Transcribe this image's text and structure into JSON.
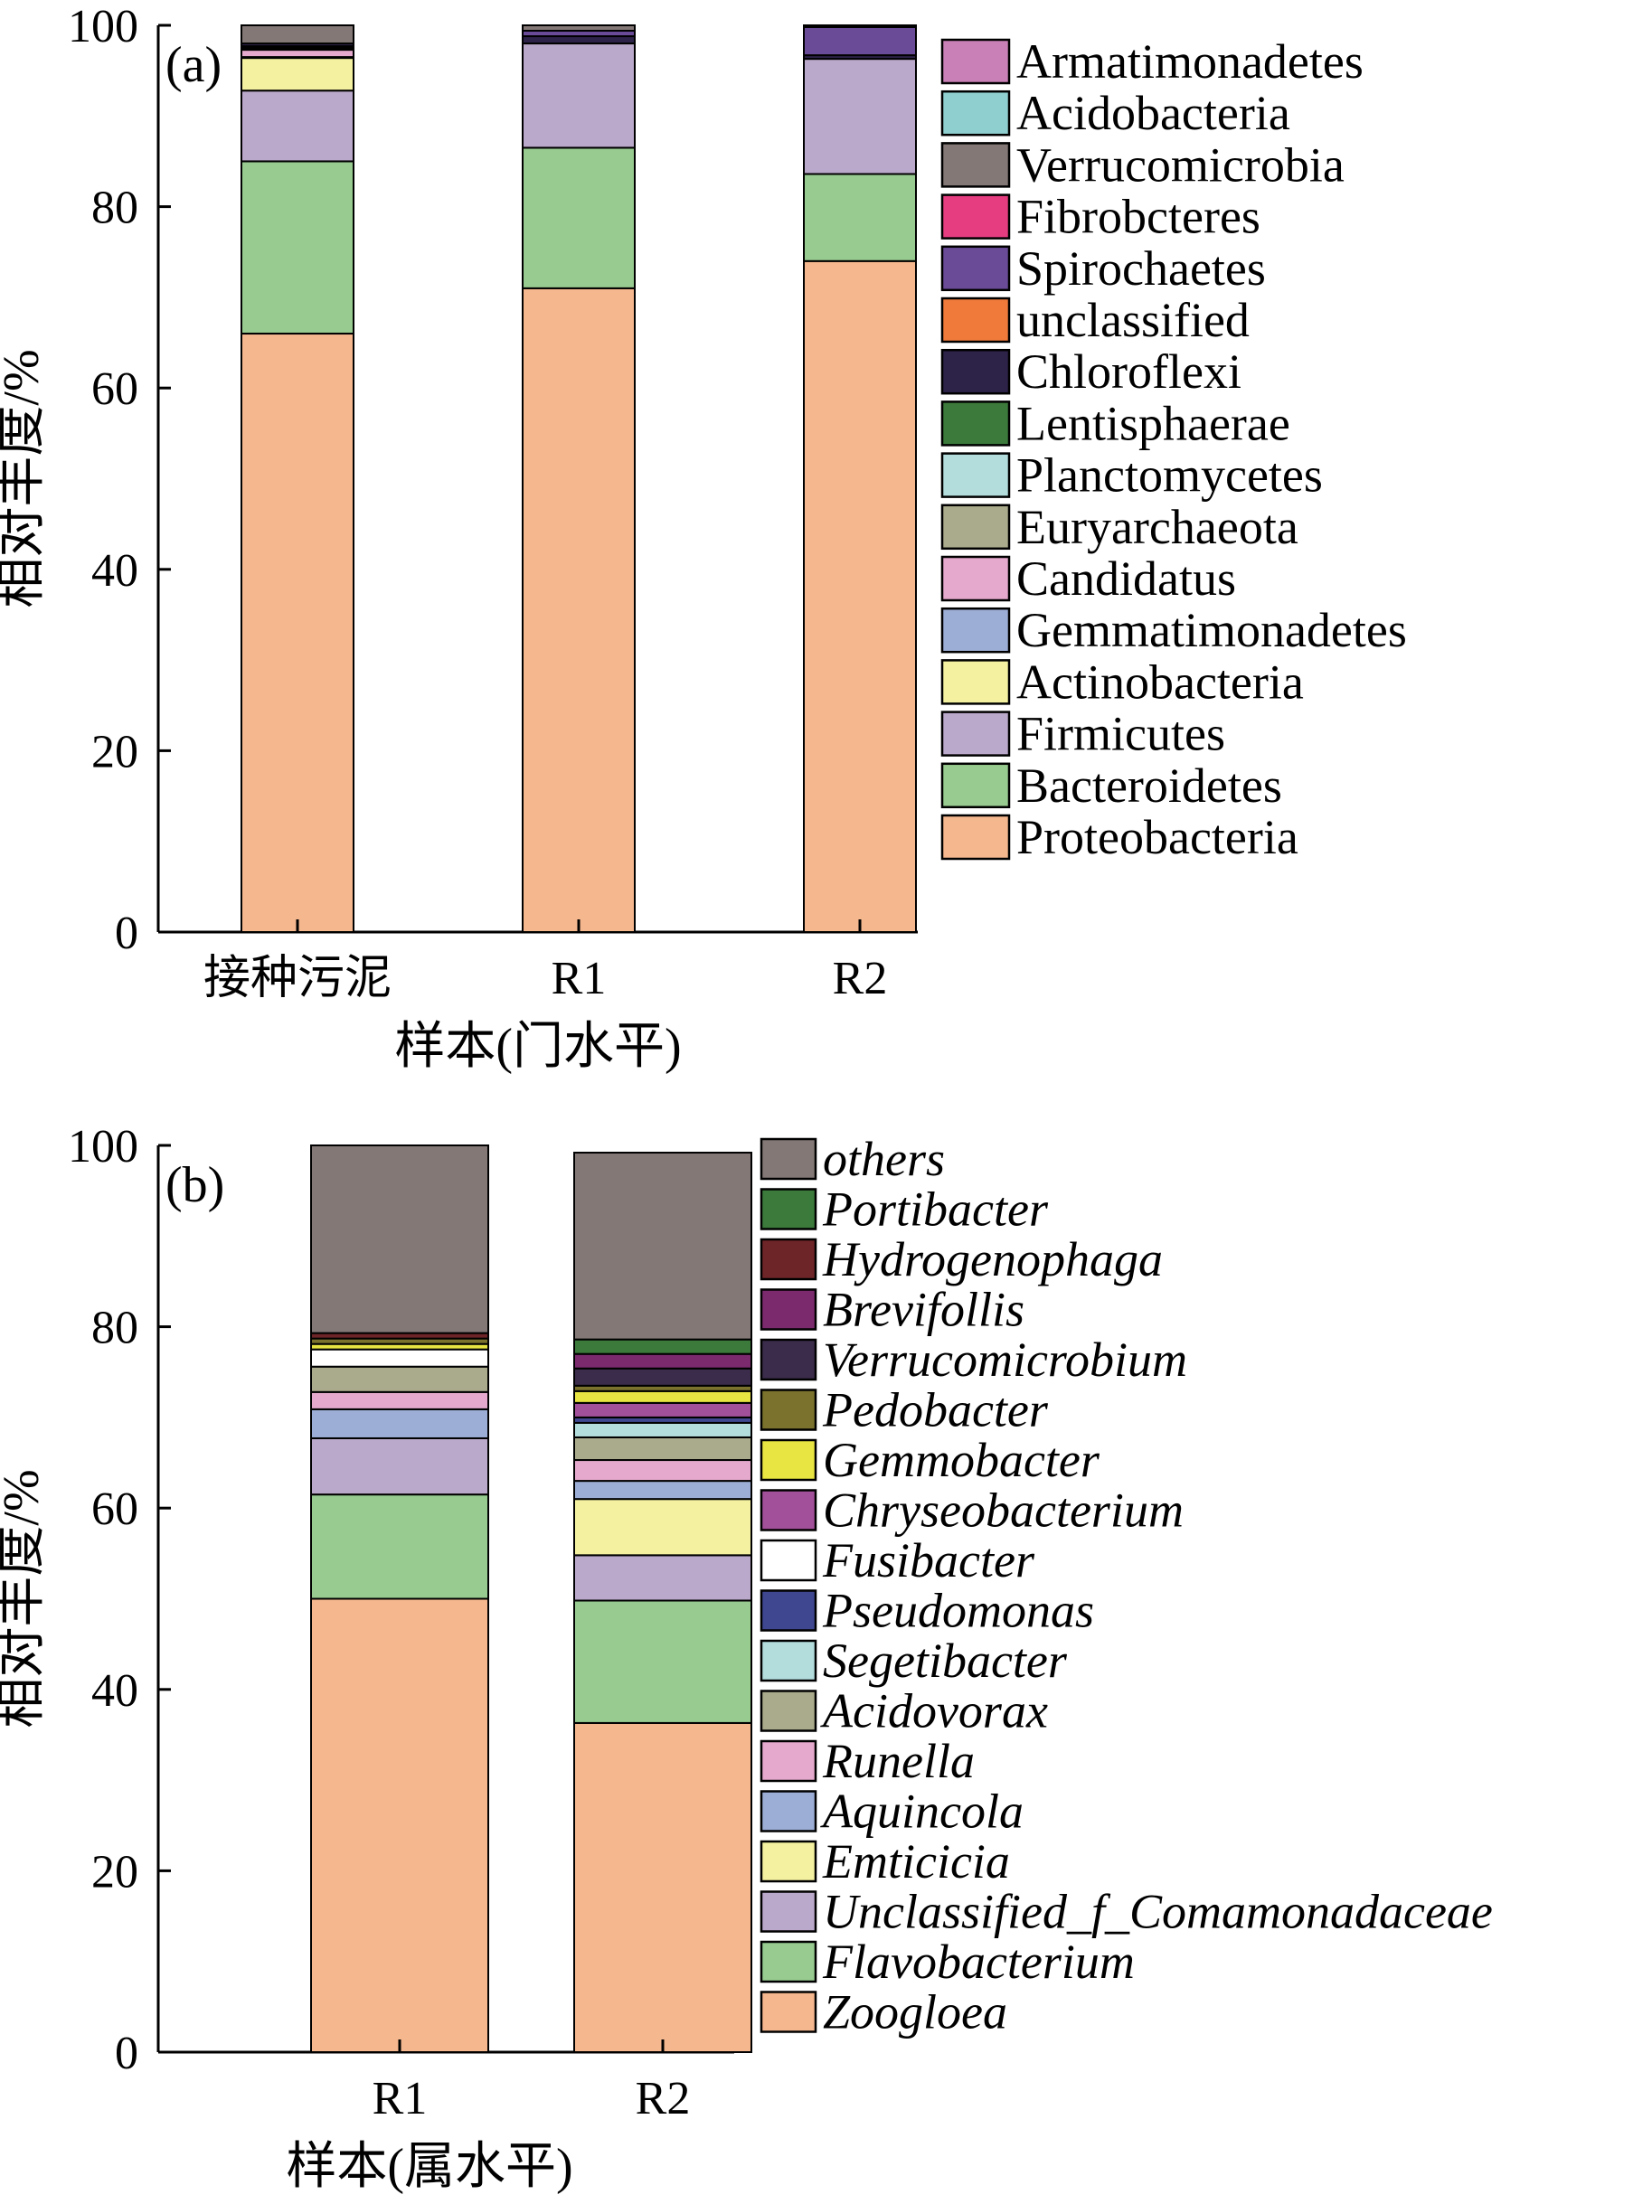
{
  "chart_data": [
    {
      "panel_label": "(a)",
      "type": "bar",
      "stacked": true,
      "xlabel": "样本(门水平)",
      "ylabel": "相对丰度/%",
      "ylim": [
        0,
        100
      ],
      "yticks": [
        0,
        20,
        40,
        60,
        80,
        100
      ],
      "categories": [
        "接种污泥",
        "R1",
        "R2"
      ],
      "legend_italic": false,
      "series": [
        {
          "name": "Proteobacteria",
          "color": "#f5b78e",
          "values": [
            66.0,
            71.0,
            74.0
          ]
        },
        {
          "name": "Bacteroidetes",
          "color": "#97cb90",
          "values": [
            19.0,
            15.5,
            9.6
          ]
        },
        {
          "name": "Firmicutes",
          "color": "#bba9cb",
          "values": [
            7.8,
            11.5,
            12.7
          ]
        },
        {
          "name": "Actinobacteria",
          "color": "#f4f2a0",
          "values": [
            3.6,
            0.0,
            0.0
          ]
        },
        {
          "name": "Gemmatimonadetes",
          "color": "#9caed6",
          "values": [
            0.1,
            0.0,
            0.0
          ]
        },
        {
          "name": "Candidatus",
          "color": "#e5a9cd",
          "values": [
            0.8,
            0.0,
            0.0
          ]
        },
        {
          "name": "Euryarchaeota",
          "color": "#aaaa8c",
          "values": [
            0.2,
            0.0,
            0.0
          ]
        },
        {
          "name": "Planctomycetes",
          "color": "#b3dcdc",
          "values": [
            0.2,
            0.0,
            0.0
          ]
        },
        {
          "name": "Lentisphaerae",
          "color": "#3b7a3b",
          "values": [
            0.0,
            0.0,
            0.0
          ]
        },
        {
          "name": "Chloroflexi",
          "color": "#2d2248",
          "values": [
            0.3,
            0.8,
            0.4
          ]
        },
        {
          "name": "unclassified",
          "color": "#ef7a3a",
          "values": [
            0.0,
            0.0,
            0.0
          ]
        },
        {
          "name": "Spirochaetes",
          "color": "#6a4b98",
          "values": [
            0.0,
            0.6,
            3.1
          ]
        },
        {
          "name": "Fibrobcteres",
          "color": "#e63d80",
          "values": [
            0.0,
            0.0,
            0.0
          ]
        },
        {
          "name": "Verrucomicrobia",
          "color": "#837876",
          "values": [
            2.0,
            0.6,
            0.2
          ]
        },
        {
          "name": "Acidobacteria",
          "color": "#90cfcf",
          "values": [
            0.0,
            0.0,
            0.0
          ]
        },
        {
          "name": "Armatimonadetes",
          "color": "#c980b6",
          "values": [
            0.0,
            0.0,
            0.0
          ]
        }
      ]
    },
    {
      "panel_label": "(b)",
      "type": "bar",
      "stacked": true,
      "xlabel": "样本(属水平)",
      "ylabel": "相对丰度/%",
      "ylim": [
        0,
        100
      ],
      "yticks": [
        0,
        20,
        40,
        60,
        80,
        100
      ],
      "categories": [
        "R1",
        "R2"
      ],
      "legend_italic": true,
      "series": [
        {
          "name": "Zoogloea",
          "color": "#f5b78e",
          "values": [
            50.0,
            36.3
          ]
        },
        {
          "name": "Flavobacterium",
          "color": "#97cb90",
          "values": [
            11.5,
            13.5
          ]
        },
        {
          "name": "Unclassified_f_Comamonadaceae",
          "color": "#bba9cb",
          "values": [
            6.2,
            5.0
          ]
        },
        {
          "name": "Emticicia",
          "color": "#f4f2a0",
          "values": [
            0.0,
            6.2
          ]
        },
        {
          "name": "Aquincola",
          "color": "#9caed6",
          "values": [
            3.2,
            2.0
          ]
        },
        {
          "name": "Runella",
          "color": "#e5a9cd",
          "values": [
            1.9,
            2.3
          ]
        },
        {
          "name": "Acidovorax",
          "color": "#aaaa8c",
          "values": [
            2.8,
            2.5
          ]
        },
        {
          "name": "Segetibacter",
          "color": "#b3dcdc",
          "values": [
            0.0,
            1.6
          ]
        },
        {
          "name": "Pseudomonas",
          "color": "#3e478f",
          "values": [
            0.0,
            0.6
          ]
        },
        {
          "name": "Fusibacter",
          "color": "#ffffff",
          "values": [
            1.9,
            0.0
          ]
        },
        {
          "name": "Chryseobacterium",
          "color": "#a3509a",
          "values": [
            0.0,
            1.6
          ]
        },
        {
          "name": "Gemmobacter",
          "color": "#e8e542",
          "values": [
            0.6,
            1.3
          ]
        },
        {
          "name": "Pedobacter",
          "color": "#7a722d",
          "values": [
            0.6,
            0.6
          ]
        },
        {
          "name": "Verrucomicrobium",
          "color": "#3a2c4a",
          "values": [
            0.0,
            1.9
          ]
        },
        {
          "name": "Brevifollis",
          "color": "#7b2a6e",
          "values": [
            0.0,
            1.6
          ]
        },
        {
          "name": "Hydrogenophaga",
          "color": "#6e2528",
          "values": [
            0.6,
            0.0
          ]
        },
        {
          "name": "Portibacter",
          "color": "#3b7a3b",
          "values": [
            0.0,
            1.6
          ]
        },
        {
          "name": "others",
          "color": "#837876",
          "values": [
            20.7,
            20.6
          ]
        }
      ]
    }
  ]
}
